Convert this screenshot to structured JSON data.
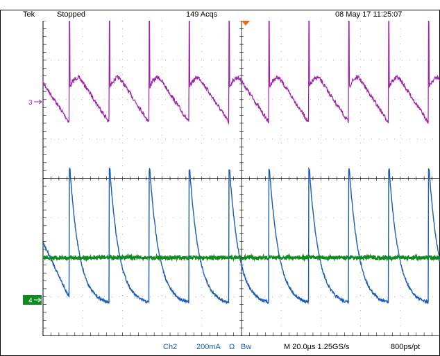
{
  "header": {
    "brand": "Tek",
    "run_state": "Stopped",
    "acquisitions": "149 Acqs",
    "timestamp": "08 May 17 11:25:07"
  },
  "markers": {
    "ch3": "3",
    "ch4": "4"
  },
  "footer": {
    "ch2_label": "Ch2",
    "ch2_scale": "200mA",
    "ch2_coupling": "Ω",
    "ch2_bw": "Bw",
    "timebase": "M 20.0µs 1.25GS/s",
    "record": "800ps/pt"
  },
  "colors": {
    "ch3": "#a020a8",
    "ch2": "#1a5cb8",
    "ch4": "#108a20",
    "trigger": "#e86a10",
    "grid": "#000000"
  }
}
